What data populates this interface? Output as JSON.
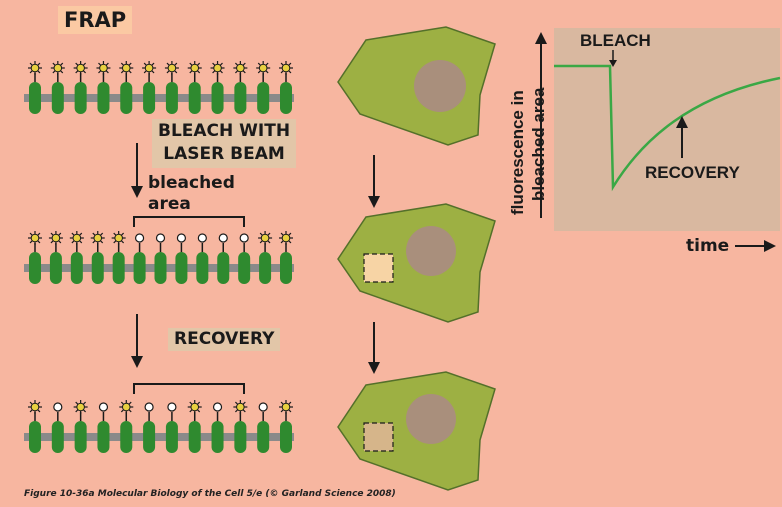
{
  "title": "FRAP",
  "steps": {
    "bleach_line1": "BLEACH WITH",
    "bleach_line2": "LASER BEAM",
    "recovery": "RECOVERY"
  },
  "bleached_area_line1": "bleached",
  "bleached_area_line2": "area",
  "graph": {
    "bleach_label": "BLEACH",
    "recovery_label": "RECOVERY",
    "ylabel_line1": "fluorescence in",
    "ylabel_line2": "bleached area",
    "xlabel": "time"
  },
  "caption": "Figure 10-36a  Molecular Biology of the Cell 5/e (© Garland Science 2008)",
  "rows": [
    {
      "pattern": "FFFFFFFFFFFF"
    },
    {
      "pattern": "FFFFFBBBBBBFF"
    },
    {
      "pattern": "FBFBFBBFBFBF"
    }
  ],
  "colors": {
    "background": "#f7b6a0",
    "protein": "#2f8a2f",
    "membrane": "#8a8a8a",
    "fluorophore": "#e8d040",
    "cell": "#9db043",
    "nucleus": "#a98f7c",
    "graph_panel": "#d9b8a0",
    "curve": "#3aa845"
  }
}
